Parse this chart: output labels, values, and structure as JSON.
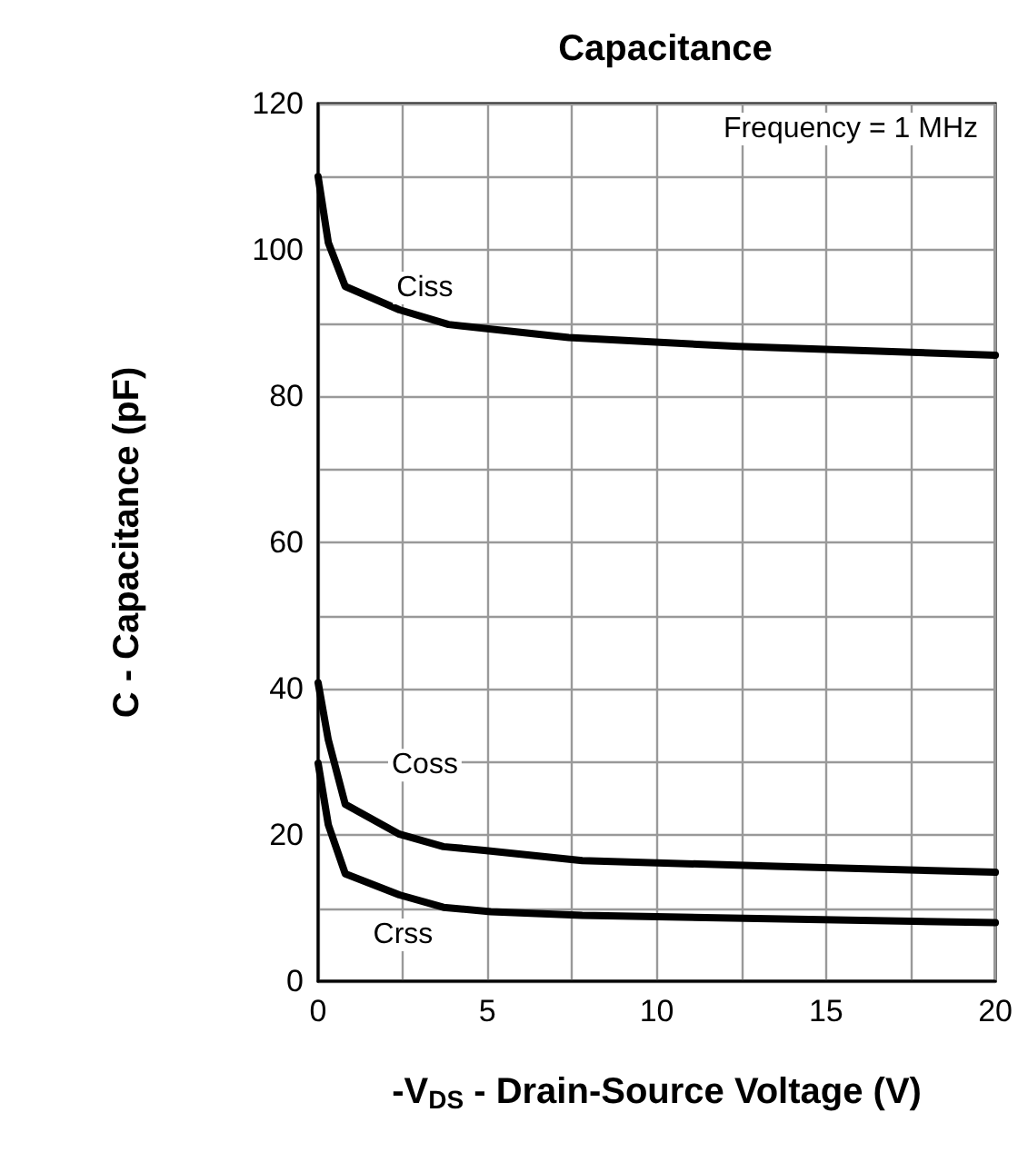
{
  "chart_data": {
    "type": "line",
    "title": "Capacitance",
    "xlabel": "-V$_{DS}$ - Drain-Source Voltage (V)",
    "ylabel": "C - Capacitance (pF)",
    "annotations": [
      "Frequency = 1 MHz"
    ],
    "series": [
      {
        "name": "Ciss",
        "color": "#000000",
        "x": [
          0,
          0.3,
          0.8,
          2.4,
          3.85,
          7.4,
          12.4,
          20
        ],
        "values": [
          110,
          101,
          95,
          91.8,
          89.8,
          88,
          86.8,
          85.6
        ]
      },
      {
        "name": "Coss",
        "color": "#000000",
        "x": [
          0,
          0.3,
          0.8,
          2.4,
          3.7,
          4.9,
          7.8,
          13.5,
          20
        ],
        "values": [
          40.8,
          33,
          24.2,
          20.1,
          18.4,
          17.9,
          16.5,
          15.7,
          14.9
        ]
      },
      {
        "name": "Crss",
        "color": "#000000",
        "x": [
          0,
          0.3,
          0.8,
          2.4,
          3.7,
          5.1,
          7.8,
          20
        ],
        "values": [
          29.8,
          21.4,
          14.7,
          11.8,
          10.1,
          9.5,
          9,
          8
        ]
      }
    ],
    "xlim": [
      0,
      20
    ],
    "ylim": [
      0,
      120
    ],
    "xticks": [
      0,
      {
        "value": 2.5,
        "label": null
      },
      5,
      {
        "value": 7.5,
        "label": null
      },
      10,
      {
        "value": 12.5,
        "label": null
      },
      15,
      {
        "value": 17.5,
        "label": null
      },
      20
    ],
    "yticks": [
      0,
      {
        "value": 10,
        "label": null
      },
      20,
      {
        "value": 30,
        "label": null
      },
      40,
      {
        "value": 50,
        "label": null
      },
      60,
      {
        "value": 70,
        "label": null
      },
      80,
      {
        "value": 90,
        "label": null
      },
      100,
      {
        "value": 110,
        "label": null
      },
      120
    ],
    "grid": true,
    "marker": "none",
    "line_style": "solid"
  }
}
